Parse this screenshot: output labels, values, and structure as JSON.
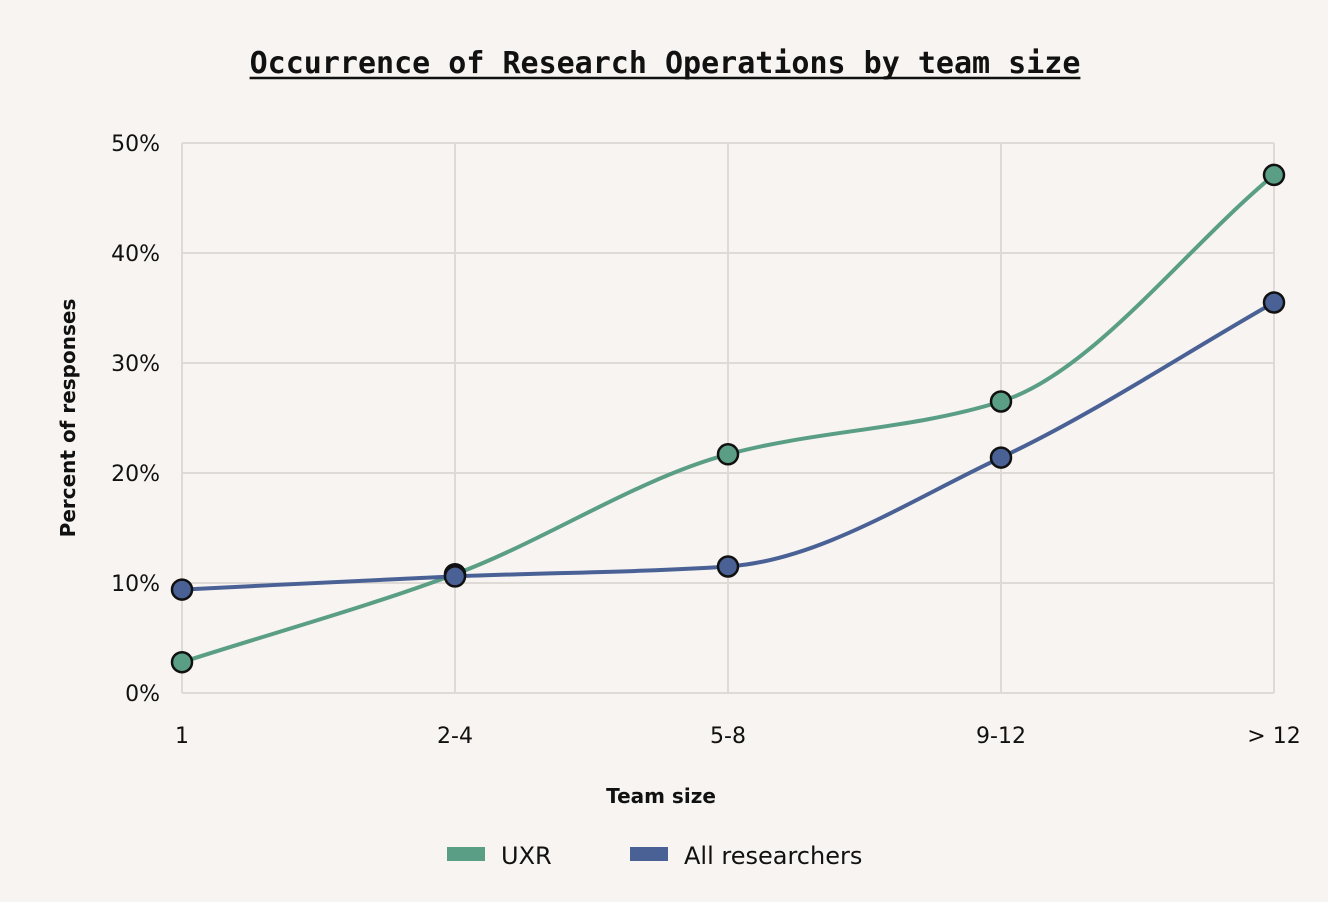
{
  "chart_data": {
    "type": "line",
    "title": "Occurrence of Research Operations by team size",
    "xlabel": "Team size",
    "ylabel": "Percent of responses",
    "categories": [
      "1",
      "2-4",
      "5-8",
      "9-12",
      "> 12"
    ],
    "yticks": [
      "0%",
      "10%",
      "20%",
      "30%",
      "40%",
      "50%"
    ],
    "ylim": [
      0,
      50
    ],
    "grid": true,
    "legend_position": "bottom",
    "series": [
      {
        "name": "UXR",
        "color": "#5a9e86",
        "values": [
          2.8,
          10.8,
          21.7,
          26.5,
          47.1
        ]
      },
      {
        "name": "All researchers",
        "color": "#4a6196",
        "values": [
          9.4,
          10.6,
          11.5,
          21.4,
          35.5
        ]
      }
    ]
  }
}
